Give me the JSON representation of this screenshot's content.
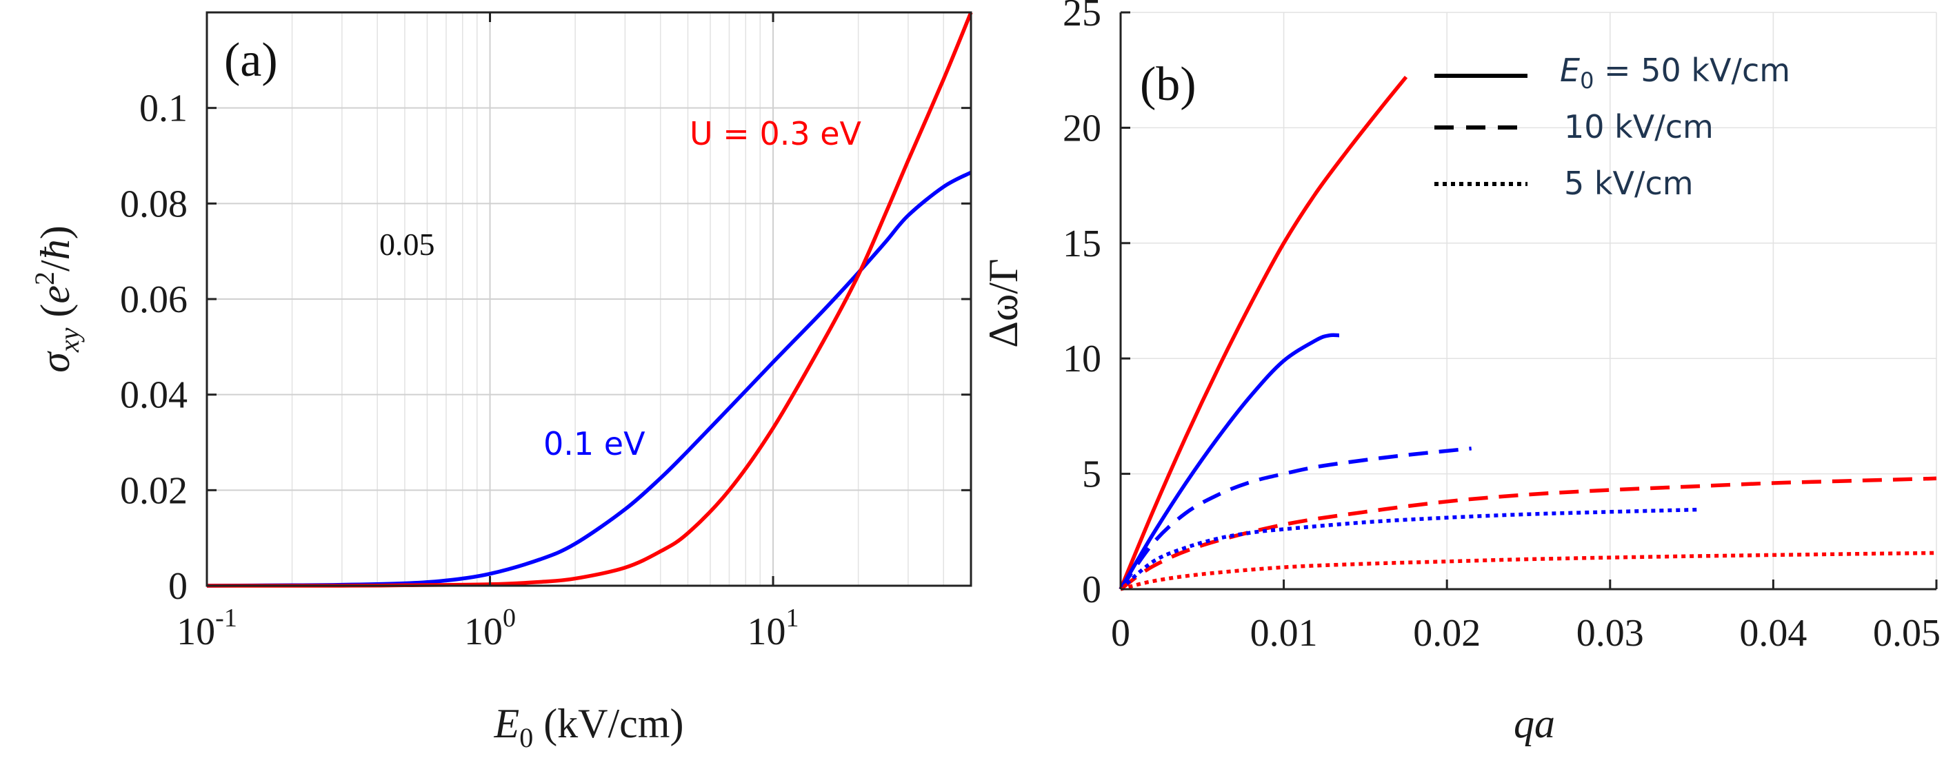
{
  "chart_data": [
    {
      "panel_label": "(a)",
      "type": "line",
      "x_scale": "log",
      "xlim": [
        0.1,
        50
      ],
      "ylim": [
        0,
        0.12
      ],
      "x_ticks": [
        {
          "value": 0.1,
          "base": "10",
          "exp": "-1"
        },
        {
          "value": 1,
          "base": "10",
          "exp": "0"
        },
        {
          "value": 10,
          "base": "10",
          "exp": "1"
        }
      ],
      "y_ticks": [
        {
          "value": 0,
          "label": "0"
        },
        {
          "value": 0.02,
          "label": "0.02"
        },
        {
          "value": 0.04,
          "label": "0.04"
        },
        {
          "value": 0.06,
          "label": "0.06"
        },
        {
          "value": 0.08,
          "label": "0.08"
        },
        {
          "value": 0.1,
          "label": "0.1"
        }
      ],
      "xlabel": {
        "var": "E",
        "sub": "0",
        "unit": " (kV/cm)"
      },
      "ylabel": {
        "var": "σ",
        "sub": "xy",
        "unit_open": " (",
        "unit_var": "e",
        "unit_sup": "2",
        "unit_slash": "/",
        "unit_hbar": "ħ",
        "unit_close": ")"
      },
      "grid": true,
      "series": [
        {
          "name": "0.1 eV",
          "color": "#0000ff",
          "x": [
            0.1,
            0.2,
            0.3,
            0.5,
            0.7,
            1,
            1.5,
            2,
            3,
            4,
            5,
            7,
            10,
            15,
            20,
            25,
            30,
            40,
            50
          ],
          "y": [
            0,
            0.0001,
            0.0002,
            0.0005,
            0.0011,
            0.0025,
            0.0055,
            0.0088,
            0.016,
            0.0225,
            0.0282,
            0.0372,
            0.0468,
            0.0575,
            0.0655,
            0.072,
            0.0775,
            0.0835,
            0.0865
          ]
        },
        {
          "name": "U = 0.3 eV",
          "color": "#ff0000",
          "x": [
            0.1,
            0.3,
            0.5,
            1,
            1.5,
            2,
            3,
            4,
            5,
            7,
            10,
            15,
            20,
            25,
            30,
            40,
            50
          ],
          "y": [
            0,
            0,
            0.0001,
            0.0003,
            0.0008,
            0.0015,
            0.0038,
            0.0072,
            0.011,
            0.02,
            0.033,
            0.051,
            0.065,
            0.078,
            0.089,
            0.106,
            0.12
          ]
        }
      ],
      "annotations": [
        {
          "text": "U = 0.3 eV",
          "color": "#ff0000"
        },
        {
          "text": "0.1 eV",
          "color": "#0000ff"
        },
        {
          "text": "0.05",
          "color": "#111111"
        }
      ]
    },
    {
      "panel_label": "(b)",
      "type": "line",
      "xlim": [
        0,
        0.05
      ],
      "ylim": [
        0,
        25
      ],
      "x_ticks": [
        {
          "value": 0,
          "label": "0"
        },
        {
          "value": 0.01,
          "label": "0.01"
        },
        {
          "value": 0.02,
          "label": "0.02"
        },
        {
          "value": 0.03,
          "label": "0.03"
        },
        {
          "value": 0.04,
          "label": "0.04"
        },
        {
          "value": 0.05,
          "label": "0.05"
        }
      ],
      "y_ticks": [
        {
          "value": 0,
          "label": "0"
        },
        {
          "value": 5,
          "label": "5"
        },
        {
          "value": 10,
          "label": "10"
        },
        {
          "value": 15,
          "label": "15"
        },
        {
          "value": 20,
          "label": "20"
        },
        {
          "value": 25,
          "label": "25"
        }
      ],
      "xlabel": "qa",
      "ylabel": "Δω/Γ",
      "grid": true,
      "legend": {
        "placement": "top-right",
        "entries": [
          {
            "style": "solid",
            "label_var": "E",
            "label_sub": "0",
            "label_rest": " = 50 kV/cm"
          },
          {
            "style": "dashed",
            "label": "10 kV/cm"
          },
          {
            "style": "dotted",
            "label": "5 kV/cm"
          }
        ]
      },
      "series": [
        {
          "name": "red 50 kV/cm",
          "color": "#ff0000",
          "style": "solid",
          "x": [
            0,
            0.002,
            0.004,
            0.006,
            0.008,
            0.01,
            0.012,
            0.014,
            0.016,
            0.0175
          ],
          "y": [
            0,
            3.4,
            6.6,
            9.6,
            12.4,
            15.0,
            17.2,
            19.1,
            20.9,
            22.2
          ]
        },
        {
          "name": "blue 50 kV/cm",
          "color": "#0000ff",
          "style": "solid",
          "x": [
            0,
            0.002,
            0.004,
            0.006,
            0.008,
            0.01,
            0.012,
            0.0128,
            0.0134
          ],
          "y": [
            0,
            2.4,
            4.6,
            6.6,
            8.4,
            9.9,
            10.8,
            11.0,
            11.0
          ]
        },
        {
          "name": "blue 10 kV/cm",
          "color": "#0000ff",
          "style": "dashed",
          "x": [
            0,
            0.002,
            0.004,
            0.006,
            0.008,
            0.01,
            0.012,
            0.015,
            0.018,
            0.0215
          ],
          "y": [
            0,
            2.0,
            3.3,
            4.1,
            4.65,
            5.0,
            5.3,
            5.6,
            5.85,
            6.1
          ]
        },
        {
          "name": "red 10 kV/cm",
          "color": "#ff0000",
          "style": "dashed",
          "x": [
            0,
            0.002,
            0.005,
            0.01,
            0.015,
            0.02,
            0.025,
            0.03,
            0.035,
            0.04,
            0.045,
            0.05
          ],
          "y": [
            0,
            1.0,
            1.9,
            2.8,
            3.35,
            3.8,
            4.1,
            4.3,
            4.45,
            4.6,
            4.7,
            4.8
          ]
        },
        {
          "name": "blue 5 kV/cm",
          "color": "#0000ff",
          "style": "dotted",
          "x": [
            0,
            0.002,
            0.004,
            0.006,
            0.008,
            0.01,
            0.015,
            0.02,
            0.025,
            0.03,
            0.0355
          ],
          "y": [
            0,
            1.2,
            1.8,
            2.2,
            2.45,
            2.6,
            2.9,
            3.1,
            3.25,
            3.35,
            3.45
          ]
        },
        {
          "name": "red 5 kV/cm",
          "color": "#ff0000",
          "style": "dotted",
          "x": [
            0,
            0.002,
            0.005,
            0.01,
            0.015,
            0.02,
            0.025,
            0.03,
            0.035,
            0.04,
            0.045,
            0.05
          ],
          "y": [
            0,
            0.35,
            0.65,
            0.95,
            1.1,
            1.2,
            1.3,
            1.37,
            1.43,
            1.48,
            1.53,
            1.57
          ]
        }
      ]
    }
  ]
}
